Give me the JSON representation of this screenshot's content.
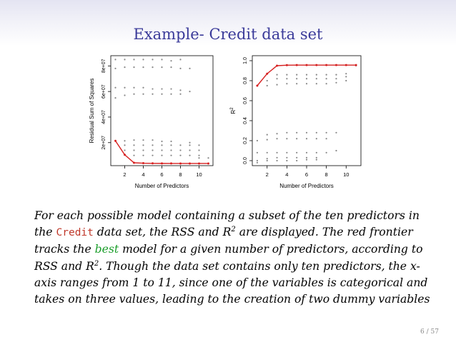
{
  "slide": {
    "title": "Example- Credit data set",
    "page_number": "6 / 57"
  },
  "caption": {
    "p1": "For each possible model containing a subset of the ten predictors in the ",
    "code": "Credit",
    "p2": " data set, the RSS and R",
    "sup1": "2",
    "p3": " are displayed. The red frontier tracks the ",
    "best": "best",
    "p4": " model for a given number of predictors, according to RSS and R",
    "sup2": "2",
    "p5": ". Though the data set contains only ten predictors, the x-axis ranges from 1 to 11, since one of the variables is categorical and takes on three values, leading to the creation of two dummy variables"
  },
  "colors": {
    "frontier": "#d62020",
    "points": "#888888",
    "title": "#3b3b9a",
    "best_word": "#1b9e2b"
  },
  "chart_data": [
    {
      "type": "scatter",
      "xlabel": "Number of Predictors",
      "ylabel": "Residual Sum of Squares",
      "x_ticks": [
        2,
        4,
        6,
        8,
        10
      ],
      "y_ticks": [
        "2e+07",
        "4e+07",
        "6e+07",
        "8e+07"
      ],
      "y_tick_values": [
        20000000,
        40000000,
        60000000,
        80000000
      ],
      "xlim": [
        0.5,
        11.5
      ],
      "ylim": [
        2000000,
        88000000
      ],
      "frontier": {
        "x": [
          1,
          2,
          3,
          4,
          5,
          6,
          7,
          8,
          9,
          10,
          11
        ],
        "y": [
          21400000,
          10530000,
          4230000,
          3920000,
          3790000,
          3740000,
          3720000,
          3710000,
          3700000,
          3700000,
          3700000
        ]
      },
      "points": {
        "x": [
          1,
          1,
          1,
          1,
          1,
          2,
          2,
          2,
          2,
          2,
          2,
          2,
          2,
          3,
          3,
          3,
          3,
          3,
          3,
          3,
          3,
          4,
          4,
          4,
          4,
          4,
          4,
          4,
          4,
          5,
          5,
          5,
          5,
          5,
          5,
          5,
          5,
          6,
          6,
          6,
          6,
          6,
          6,
          6,
          6,
          7,
          7,
          7,
          7,
          7,
          7,
          7,
          7,
          8,
          8,
          8,
          8,
          8,
          8,
          8,
          9,
          9,
          9,
          9,
          9,
          9,
          10,
          10,
          10,
          10,
          11
        ],
        "y": [
          85000000,
          78000000,
          63000000,
          55000000,
          21400000,
          85000000,
          79000000,
          63000000,
          57000000,
          21400000,
          18000000,
          14000000,
          10530000,
          85000000,
          79000000,
          63000000,
          58000000,
          22000000,
          18000000,
          14000000,
          10000000,
          85000000,
          79000000,
          63000000,
          58000000,
          22000000,
          18000000,
          14000000,
          10000000,
          85000000,
          79000000,
          62000000,
          58000000,
          22000000,
          18000000,
          14000000,
          10000000,
          85000000,
          79000000,
          62000000,
          58000000,
          21000000,
          18000000,
          14000000,
          10000000,
          84000000,
          79000000,
          62000000,
          58000000,
          21000000,
          18000000,
          14000000,
          10000000,
          85000000,
          78000000,
          61000000,
          58000000,
          18000000,
          14000000,
          10000000,
          78000000,
          60000000,
          20000000,
          18000000,
          14000000,
          10000000,
          18000000,
          14000000,
          10000000,
          8000000,
          8000000
        ]
      }
    },
    {
      "type": "scatter",
      "xlabel": "Number of Predictors",
      "ylabel": "R2",
      "x_ticks": [
        2,
        4,
        6,
        8,
        10
      ],
      "y_ticks": [
        "0.0",
        "0.2",
        "0.4",
        "0.6",
        "0.8",
        "1.0"
      ],
      "y_tick_values": [
        0,
        0.2,
        0.4,
        0.6,
        0.8,
        1.0
      ],
      "xlim": [
        0.5,
        11.5
      ],
      "ylim": [
        -0.05,
        1.05
      ],
      "frontier": {
        "x": [
          1,
          2,
          3,
          4,
          5,
          6,
          7,
          8,
          9,
          10,
          11
        ],
        "y": [
          0.75,
          0.87,
          0.95,
          0.955,
          0.956,
          0.956,
          0.956,
          0.956,
          0.956,
          0.956,
          0.956
        ]
      },
      "points": {
        "x": [
          1,
          1,
          1,
          1,
          1,
          1,
          2,
          2,
          2,
          2,
          2,
          2,
          2,
          2,
          3,
          3,
          3,
          3,
          3,
          3,
          3,
          3,
          4,
          4,
          4,
          4,
          4,
          4,
          4,
          4,
          5,
          5,
          5,
          5,
          5,
          5,
          5,
          5,
          6,
          6,
          6,
          6,
          6,
          6,
          6,
          6,
          7,
          7,
          7,
          7,
          7,
          7,
          7,
          7,
          8,
          8,
          8,
          8,
          8,
          8,
          9,
          9,
          9,
          9,
          9,
          10,
          10,
          10,
          11
        ],
        "y": [
          0.75,
          0.2,
          0.08,
          0.0,
          -0.02,
          0.75,
          0.87,
          0.8,
          0.75,
          0.26,
          0.21,
          0.08,
          0.02,
          0.0,
          0.86,
          0.82,
          0.76,
          0.27,
          0.22,
          0.08,
          0.03,
          0.0,
          0.86,
          0.82,
          0.77,
          0.28,
          0.22,
          0.08,
          0.03,
          0.0,
          0.86,
          0.82,
          0.77,
          0.28,
          0.22,
          0.08,
          0.03,
          0.0,
          0.86,
          0.82,
          0.77,
          0.28,
          0.22,
          0.08,
          0.03,
          0.01,
          0.86,
          0.82,
          0.77,
          0.28,
          0.22,
          0.08,
          0.03,
          0.01,
          0.86,
          0.82,
          0.77,
          0.28,
          0.22,
          0.08,
          0.86,
          0.82,
          0.78,
          0.28,
          0.1,
          0.87,
          0.84,
          0.8,
          0.95
        ]
      }
    }
  ]
}
